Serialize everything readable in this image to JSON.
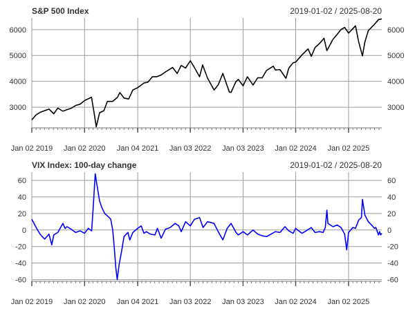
{
  "chart_data": [
    {
      "type": "line",
      "title": "S&P 500 Index",
      "date_range": "2019-01-02 / 2025-08-20",
      "xlabel": "",
      "ylabel": "",
      "x_range": [
        "2019-01-02",
        "2025-08-20"
      ],
      "x_tick_dates": [
        "2019-01-02",
        "2020-01-02",
        "2021-01-04",
        "2022-01-03",
        "2023-01-03",
        "2024-01-02",
        "2025-01-02"
      ],
      "x_tick_labels": [
        "Jan 02 2019",
        "Jan 02 2020",
        "Jan 04 2021",
        "Jan 03 2022",
        "Jan 03 2023",
        "Jan 02 2024",
        "Jan 02 2025"
      ],
      "ylim": [
        2200,
        6450
      ],
      "y_ticks": [
        3000,
        4000,
        5000,
        6000
      ],
      "y_tick_labels": [
        "3000",
        "4000",
        "5000",
        "6000"
      ],
      "grid": true,
      "series": [
        {
          "color": "#000000",
          "points": [
            [
              "2019-01-02",
              2510
            ],
            [
              "2019-02-01",
              2705
            ],
            [
              "2019-03-01",
              2800
            ],
            [
              "2019-04-01",
              2865
            ],
            [
              "2019-05-01",
              2925
            ],
            [
              "2019-06-03",
              2745
            ],
            [
              "2019-07-01",
              2965
            ],
            [
              "2019-08-05",
              2845
            ],
            [
              "2019-09-03",
              2905
            ],
            [
              "2019-10-01",
              2955
            ],
            [
              "2019-11-01",
              3065
            ],
            [
              "2019-12-02",
              3115
            ],
            [
              "2020-01-02",
              3255
            ],
            [
              "2020-02-19",
              3385
            ],
            [
              "2020-03-09",
              2745
            ],
            [
              "2020-03-23",
              2240
            ],
            [
              "2020-04-15",
              2785
            ],
            [
              "2020-05-15",
              2865
            ],
            [
              "2020-06-08",
              3225
            ],
            [
              "2020-07-15",
              3225
            ],
            [
              "2020-08-17",
              3385
            ],
            [
              "2020-09-02",
              3565
            ],
            [
              "2020-10-01",
              3355
            ],
            [
              "2020-11-02",
              3315
            ],
            [
              "2020-12-01",
              3665
            ],
            [
              "2021-01-04",
              3755
            ],
            [
              "2021-02-16",
              3935
            ],
            [
              "2021-03-15",
              3965
            ],
            [
              "2021-04-15",
              4175
            ],
            [
              "2021-05-14",
              4175
            ],
            [
              "2021-06-15",
              4245
            ],
            [
              "2021-07-15",
              4365
            ],
            [
              "2021-08-16",
              4475
            ],
            [
              "2021-09-02",
              4535
            ],
            [
              "2021-10-04",
              4305
            ],
            [
              "2021-11-01",
              4615
            ],
            [
              "2021-12-01",
              4515
            ],
            [
              "2022-01-03",
              4795
            ],
            [
              "2022-02-01",
              4525
            ],
            [
              "2022-03-08",
              4175
            ],
            [
              "2022-03-29",
              4635
            ],
            [
              "2022-05-02",
              4125
            ],
            [
              "2022-06-16",
              3665
            ],
            [
              "2022-07-15",
              3865
            ],
            [
              "2022-08-16",
              4305
            ],
            [
              "2022-09-30",
              3585
            ],
            [
              "2022-10-12",
              3575
            ],
            [
              "2022-11-15",
              3995
            ],
            [
              "2022-12-01",
              4075
            ],
            [
              "2023-01-03",
              3825
            ],
            [
              "2023-02-02",
              4175
            ],
            [
              "2023-03-13",
              3855
            ],
            [
              "2023-04-14",
              4135
            ],
            [
              "2023-05-15",
              4135
            ],
            [
              "2023-06-15",
              4425
            ],
            [
              "2023-07-31",
              4585
            ],
            [
              "2023-08-15",
              4435
            ],
            [
              "2023-09-15",
              4455
            ],
            [
              "2023-10-27",
              4115
            ],
            [
              "2023-11-15",
              4505
            ],
            [
              "2023-12-15",
              4715
            ],
            [
              "2024-01-02",
              4745
            ],
            [
              "2024-02-15",
              5025
            ],
            [
              "2024-03-28",
              5255
            ],
            [
              "2024-04-19",
              4965
            ],
            [
              "2024-05-15",
              5305
            ],
            [
              "2024-06-17",
              5475
            ],
            [
              "2024-07-16",
              5665
            ],
            [
              "2024-08-05",
              5185
            ],
            [
              "2024-09-16",
              5625
            ],
            [
              "2024-10-15",
              5815
            ],
            [
              "2024-11-11",
              6005
            ],
            [
              "2024-12-06",
              6085
            ],
            [
              "2025-01-02",
              5865
            ],
            [
              "2025-02-19",
              6145
            ],
            [
              "2025-03-13",
              5525
            ],
            [
              "2025-04-08",
              4985
            ],
            [
              "2025-04-25",
              5525
            ],
            [
              "2025-05-19",
              5965
            ],
            [
              "2025-06-30",
              6205
            ],
            [
              "2025-07-28",
              6385
            ],
            [
              "2025-08-20",
              6415
            ]
          ]
        }
      ]
    },
    {
      "type": "line",
      "title": "VIX Index: 100-day change",
      "date_range": "2019-01-02 / 2025-08-20",
      "xlabel": "",
      "ylabel": "",
      "x_range": [
        "2019-01-02",
        "2025-08-20"
      ],
      "x_tick_dates": [
        "2019-01-02",
        "2020-01-02",
        "2021-01-04",
        "2022-01-03",
        "2023-01-03",
        "2024-01-02",
        "2025-01-02"
      ],
      "x_tick_labels": [
        "Jan 02 2019",
        "Jan 02 2020",
        "Jan 04 2021",
        "Jan 03 2022",
        "Jan 03 2023",
        "Jan 02 2024",
        "Jan 02 2025"
      ],
      "ylim": [
        -62,
        70
      ],
      "y_ticks": [
        -60,
        -40,
        -20,
        0,
        20,
        40,
        60
      ],
      "y_tick_labels": [
        "-60",
        "-40",
        "-20",
        "0",
        "20",
        "40",
        "60"
      ],
      "grid": true,
      "series": [
        {
          "color": "#0000ff",
          "points": [
            [
              "2019-01-02",
              13
            ],
            [
              "2019-02-01",
              3
            ],
            [
              "2019-02-28",
              -5
            ],
            [
              "2019-03-15",
              -8
            ],
            [
              "2019-04-01",
              -11
            ],
            [
              "2019-05-01",
              -5
            ],
            [
              "2019-05-20",
              -18
            ],
            [
              "2019-06-03",
              -6
            ],
            [
              "2019-07-01",
              -3
            ],
            [
              "2019-08-05",
              8
            ],
            [
              "2019-08-20",
              2
            ],
            [
              "2019-09-03",
              4
            ],
            [
              "2019-10-01",
              1
            ],
            [
              "2019-11-01",
              -3
            ],
            [
              "2019-12-02",
              -1
            ],
            [
              "2020-01-02",
              -4
            ],
            [
              "2020-01-28",
              2
            ],
            [
              "2020-02-20",
              -1
            ],
            [
              "2020-03-01",
              25
            ],
            [
              "2020-03-16",
              68
            ],
            [
              "2020-03-30",
              52
            ],
            [
              "2020-04-15",
              35
            ],
            [
              "2020-05-01",
              27
            ],
            [
              "2020-05-20",
              20
            ],
            [
              "2020-06-15",
              16
            ],
            [
              "2020-07-01",
              13
            ],
            [
              "2020-07-15",
              0
            ],
            [
              "2020-07-25",
              -20
            ],
            [
              "2020-08-05",
              -45
            ],
            [
              "2020-08-15",
              -60
            ],
            [
              "2020-08-28",
              -42
            ],
            [
              "2020-09-15",
              -25
            ],
            [
              "2020-10-01",
              -8
            ],
            [
              "2020-10-28",
              -3
            ],
            [
              "2020-11-10",
              -12
            ],
            [
              "2020-12-01",
              -3
            ],
            [
              "2021-01-04",
              2
            ],
            [
              "2021-01-28",
              5
            ],
            [
              "2021-02-16",
              -4
            ],
            [
              "2021-03-05",
              -2
            ],
            [
              "2021-04-01",
              -5
            ],
            [
              "2021-05-03",
              -6
            ],
            [
              "2021-05-20",
              2
            ],
            [
              "2021-06-15",
              -10
            ],
            [
              "2021-07-15",
              1
            ],
            [
              "2021-08-16",
              3
            ],
            [
              "2021-09-20",
              8
            ],
            [
              "2021-10-15",
              5
            ],
            [
              "2021-11-01",
              -2
            ],
            [
              "2021-12-01",
              10
            ],
            [
              "2022-01-03",
              5
            ],
            [
              "2022-02-01",
              13
            ],
            [
              "2022-03-08",
              15
            ],
            [
              "2022-04-01",
              3
            ],
            [
              "2022-05-02",
              10
            ],
            [
              "2022-06-16",
              8
            ],
            [
              "2022-07-15",
              -2
            ],
            [
              "2022-08-16",
              -12
            ],
            [
              "2022-09-15",
              2
            ],
            [
              "2022-10-12",
              8
            ],
            [
              "2022-11-15",
              -3
            ],
            [
              "2022-12-01",
              -6
            ],
            [
              "2023-01-03",
              -2
            ],
            [
              "2023-02-02",
              -6
            ],
            [
              "2023-03-13",
              0
            ],
            [
              "2023-04-14",
              -5
            ],
            [
              "2023-05-15",
              -7
            ],
            [
              "2023-06-15",
              -8
            ],
            [
              "2023-07-15",
              -5
            ],
            [
              "2023-08-15",
              -2
            ],
            [
              "2023-09-15",
              -3
            ],
            [
              "2023-10-20",
              4
            ],
            [
              "2023-11-15",
              -1
            ],
            [
              "2023-12-15",
              -4
            ],
            [
              "2024-01-02",
              2
            ],
            [
              "2024-01-30",
              -2
            ],
            [
              "2024-02-15",
              -4
            ],
            [
              "2024-03-15",
              -1
            ],
            [
              "2024-04-19",
              3
            ],
            [
              "2024-05-15",
              -3
            ],
            [
              "2024-06-15",
              -2
            ],
            [
              "2024-07-10",
              -3
            ],
            [
              "2024-07-25",
              3
            ],
            [
              "2024-08-05",
              24
            ],
            [
              "2024-08-12",
              8
            ],
            [
              "2024-09-16",
              4
            ],
            [
              "2024-10-15",
              6
            ],
            [
              "2024-11-11",
              3
            ],
            [
              "2024-12-06",
              -5
            ],
            [
              "2024-12-20",
              -24
            ],
            [
              "2025-01-02",
              -3
            ],
            [
              "2025-02-01",
              3
            ],
            [
              "2025-02-19",
              2
            ],
            [
              "2025-03-13",
              12
            ],
            [
              "2025-04-01",
              15
            ],
            [
              "2025-04-08",
              37
            ],
            [
              "2025-04-25",
              18
            ],
            [
              "2025-05-19",
              10
            ],
            [
              "2025-06-10",
              6
            ],
            [
              "2025-06-30",
              2
            ],
            [
              "2025-07-10",
              3
            ],
            [
              "2025-07-28",
              -6
            ],
            [
              "2025-08-05",
              -2
            ],
            [
              "2025-08-12",
              -6
            ],
            [
              "2025-08-20",
              -4
            ]
          ]
        }
      ]
    }
  ]
}
